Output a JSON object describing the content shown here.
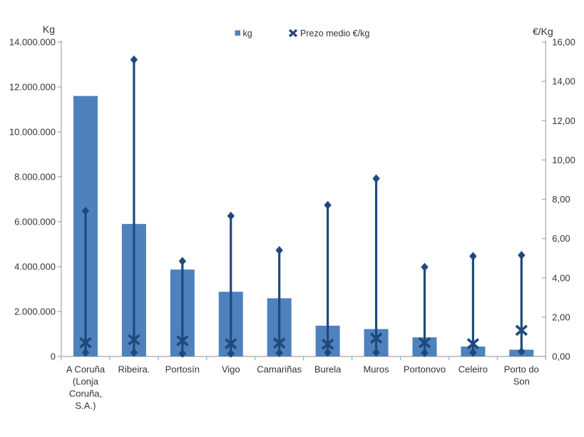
{
  "chart_data": {
    "type": "bar",
    "subtype": "column-with-highlow-price-lines",
    "categories": [
      "A Coruña (Lonja Coruña, S.A.)",
      "Ribeira.",
      "Portosín",
      "Vigo",
      "Camariñas",
      "Burela",
      "Muros",
      "Portonovo",
      "Celeiro",
      "Porto do Son"
    ],
    "categories_wrapped": [
      [
        "A Coruña",
        "(Lonja",
        "Coruña,",
        "S.A.)"
      ],
      [
        "Ribeira."
      ],
      [
        "Portosín"
      ],
      [
        "Vigo"
      ],
      [
        "Camariñas"
      ],
      [
        "Burela"
      ],
      [
        "Muros"
      ],
      [
        "Portonovo"
      ],
      [
        "Celeiro"
      ],
      [
        "Porto do",
        "Son"
      ]
    ],
    "series": [
      {
        "name": "kg",
        "type": "bar",
        "axis": "left",
        "color": "#4E81BD",
        "values": [
          11600000,
          5900000,
          3870000,
          2880000,
          2590000,
          1370000,
          1220000,
          850000,
          440000,
          300000
        ]
      },
      {
        "name": "Prezo medio €/kg",
        "type": "x-marker",
        "axis": "right",
        "color": "#1F497D",
        "values": [
          0.7,
          0.85,
          0.8,
          0.65,
          0.68,
          0.62,
          0.93,
          0.7,
          0.65,
          1.33
        ]
      }
    ],
    "price_range_lines": {
      "note": "unlabeled vertical high-low lines with diamond caps, read on right axis",
      "color": "#1F497D",
      "max": [
        7.4,
        15.1,
        4.85,
        7.15,
        5.4,
        7.7,
        9.05,
        4.55,
        5.1,
        5.15
      ],
      "min": [
        0.2,
        0.2,
        0.15,
        0.15,
        0.18,
        0.2,
        0.2,
        0.18,
        0.2,
        0.25
      ]
    },
    "left_axis": {
      "title": "Kg",
      "min": 0,
      "max": 14000000,
      "step": 2000000,
      "tick_labels": [
        "0",
        "2.000.000",
        "4.000.000",
        "6.000.000",
        "8.000.000",
        "10.000.000",
        "12.000.000",
        "14.000.000"
      ]
    },
    "right_axis": {
      "title": "€/Kg",
      "min": 0,
      "max": 16,
      "step": 2,
      "tick_labels": [
        "0,00",
        "2,00",
        "4,00",
        "6,00",
        "8,00",
        "10,00",
        "12,00",
        "14,00",
        "16,00"
      ]
    },
    "legend": {
      "position": "top-center",
      "items": [
        {
          "label": "kg",
          "marker": "square",
          "color": "#4E81BD"
        },
        {
          "label": "Prezo medio €/kg",
          "marker": "x",
          "color": "#1F497D"
        }
      ]
    },
    "grid": false,
    "background": "#FFFFFF",
    "axis_color": "#A6A6A6",
    "text_color": "#333333"
  }
}
